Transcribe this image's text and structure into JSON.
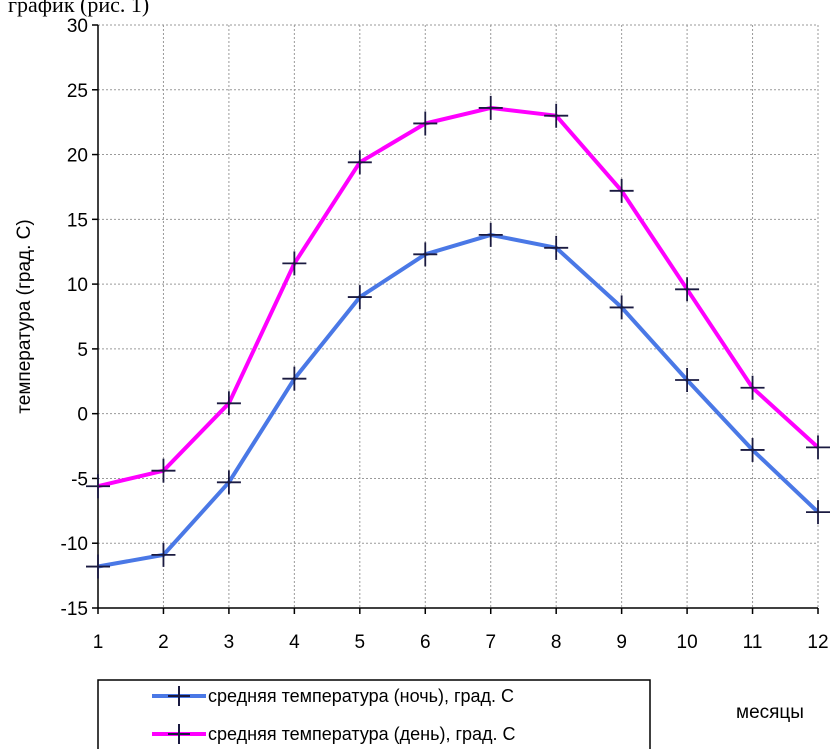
{
  "header_fragment": "график (рис. 1)",
  "chart_data": {
    "type": "line",
    "x": [
      1,
      2,
      3,
      4,
      5,
      6,
      7,
      8,
      9,
      10,
      11,
      12
    ],
    "xlim": [
      1,
      12
    ],
    "ylim": [
      -15,
      30
    ],
    "yticks": [
      -15,
      -10,
      -5,
      0,
      5,
      10,
      15,
      20,
      25,
      30
    ],
    "xticks": [
      1,
      2,
      3,
      4,
      5,
      6,
      7,
      8,
      9,
      10,
      11,
      12
    ],
    "xlabel": "месяцы",
    "ylabel": "температура (град. С)",
    "grid": true,
    "legend_position": "bottom",
    "series": [
      {
        "name": "средняя температура (ночь), град. С",
        "color": "#4a78e6",
        "values": [
          -11.8,
          -10.9,
          -5.3,
          2.7,
          9.0,
          12.3,
          13.8,
          12.8,
          8.2,
          2.6,
          -2.8,
          -7.6
        ]
      },
      {
        "name": "средняя температура (день), град. С",
        "color": "#ff00ff",
        "values": [
          -5.6,
          -4.4,
          0.8,
          11.6,
          19.4,
          22.4,
          23.6,
          23.0,
          17.2,
          9.6,
          2.0,
          -2.6
        ]
      }
    ]
  }
}
